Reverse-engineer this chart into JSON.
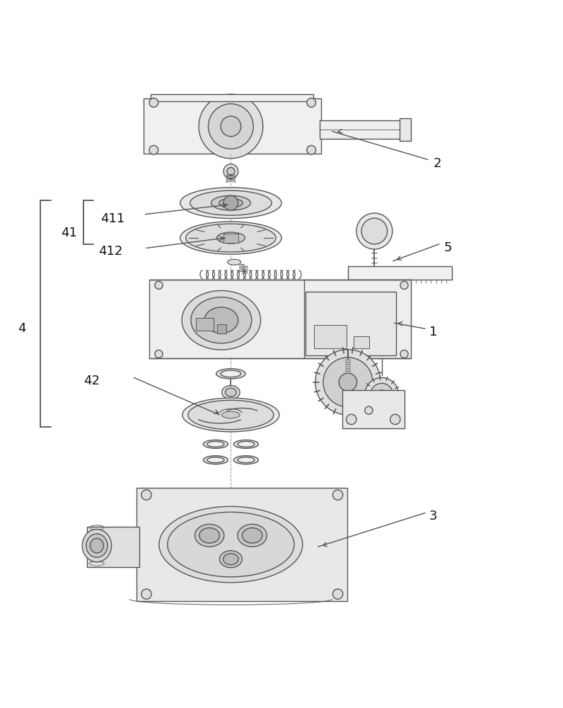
{
  "bg_color": "#ffffff",
  "line_color": "#555555",
  "line_width": 1.0,
  "figsize": [
    7.96,
    10.0
  ],
  "dpi": 100
}
